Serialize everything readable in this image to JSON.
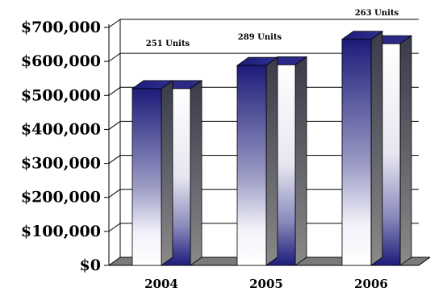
{
  "chart_data": {
    "type": "bar",
    "categories": [
      "2004",
      "2005",
      "2006"
    ],
    "series": [
      {
        "values": [
          520000,
          588000,
          665000
        ]
      },
      {
        "values": [
          520000,
          590000,
          652000
        ]
      }
    ],
    "data_labels": [
      "251 Units",
      "289 Units",
      "263 Units"
    ],
    "ylim": [
      0,
      700000
    ],
    "y_ticks": [
      "$0",
      "$100,000",
      "$200,000",
      "$300,000",
      "$400,000",
      "$500,000",
      "$600,000",
      "$700,000"
    ],
    "y_tick_values": [
      0,
      100000,
      200000,
      300000,
      400000,
      500000,
      600000,
      700000
    ],
    "grid": true,
    "colors": {
      "navy": "#1c1c7a",
      "white": "#ffffff",
      "floor": "#7a7a7a",
      "side_dark": "#3a3a3a"
    }
  }
}
